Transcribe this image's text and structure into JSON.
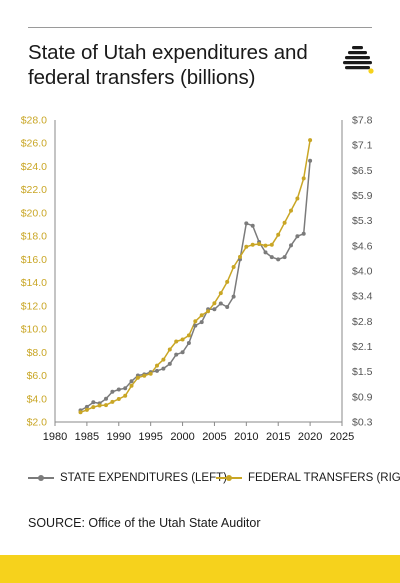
{
  "title": "State of Utah expenditures and federal transfers (billions)",
  "source": "SOURCE: Office of the Utah State Auditor",
  "colors": {
    "state": "#7b7b7b",
    "federal": "#c9a625",
    "left_axis_text": "#c9a625",
    "right_axis_text": "#555555",
    "accent_bar": "#f6d21c"
  },
  "icons": {
    "logo": "beehive-icon"
  },
  "chart_data": {
    "type": "line",
    "title": "State of Utah expenditures and federal transfers (billions)",
    "x": [
      1984,
      1985,
      1986,
      1987,
      1988,
      1989,
      1990,
      1991,
      1992,
      1993,
      1994,
      1995,
      1996,
      1997,
      1998,
      1999,
      2000,
      2001,
      2002,
      2003,
      2004,
      2005,
      2006,
      2007,
      2008,
      2009,
      2010,
      2011,
      2012,
      2013,
      2014,
      2015,
      2016,
      2017,
      2018,
      2019,
      2020
    ],
    "xlim": [
      1980,
      2025
    ],
    "x_ticks": [
      "1980",
      "1985",
      "1990",
      "1995",
      "2000",
      "2005",
      "2010",
      "2015",
      "2020",
      "2025"
    ],
    "y_left": {
      "lim": [
        2.0,
        28.0
      ],
      "ticks": [
        "$2.0",
        "$4.0",
        "$6.0",
        "$8.0",
        "$10.0",
        "$12.0",
        "$14.0",
        "$16.0",
        "$18.0",
        "$20.0",
        "$22.0",
        "$24.0",
        "$26.0",
        "$28.0"
      ]
    },
    "y_right": {
      "lim": [
        0.3,
        7.8
      ],
      "ticks": [
        "$0.3",
        "$0.9",
        "$1.5",
        "$2.1",
        "$2.8",
        "$3.4",
        "$4.0",
        "$4.6",
        "$5.3",
        "$5.9",
        "$6.5",
        "$7.1",
        "$7.8"
      ]
    },
    "series": [
      {
        "name": "STATE EXPENDITURES (LEFT)",
        "axis": "left",
        "values": [
          3.0,
          3.3,
          3.7,
          3.6,
          4.0,
          4.6,
          4.8,
          4.9,
          5.5,
          6.0,
          6.1,
          6.3,
          6.4,
          6.6,
          7.0,
          7.8,
          8.0,
          8.8,
          10.3,
          10.6,
          11.7,
          11.7,
          12.2,
          11.9,
          12.8,
          16.0,
          19.1,
          18.9,
          17.5,
          16.6,
          16.2,
          16.0,
          16.2,
          17.2,
          18.0,
          18.2,
          24.5
        ]
      },
      {
        "name": "FEDERAL TRANSFERS (RIGHT)",
        "axis": "right",
        "values": [
          0.54,
          0.6,
          0.67,
          0.71,
          0.72,
          0.8,
          0.87,
          0.95,
          1.2,
          1.4,
          1.45,
          1.5,
          1.7,
          1.85,
          2.1,
          2.3,
          2.35,
          2.45,
          2.8,
          2.95,
          3.05,
          3.25,
          3.5,
          3.78,
          4.15,
          4.4,
          4.65,
          4.7,
          4.72,
          4.68,
          4.7,
          4.95,
          5.25,
          5.55,
          5.85,
          6.35,
          7.3
        ]
      }
    ]
  }
}
